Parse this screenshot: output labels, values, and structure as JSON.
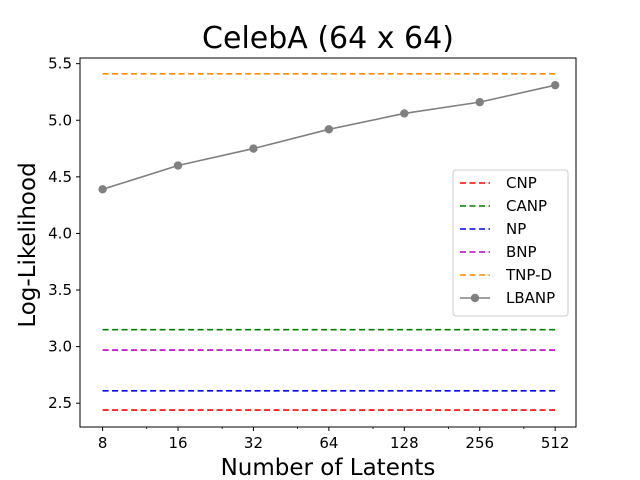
{
  "chart_data": {
    "type": "line",
    "title": "CelebA (64 x 64)",
    "xlabel": "Number of Latents",
    "ylabel": "Log-Likelihood",
    "xscale": "log2",
    "x": [
      8,
      16,
      32,
      64,
      128,
      256,
      512
    ],
    "x_tick_labels": [
      "8",
      "16",
      "32",
      "64",
      "128",
      "256",
      "512"
    ],
    "xlim": [
      6.5,
      620
    ],
    "ylim": [
      2.29,
      5.55
    ],
    "y_ticks": [
      2.5,
      3.0,
      3.5,
      4.0,
      4.5,
      5.0,
      5.5
    ],
    "y_tick_labels": [
      "2.5",
      "3.0",
      "3.5",
      "4.0",
      "4.5",
      "5.0",
      "5.5"
    ],
    "grid": false,
    "legend_position": "center-right",
    "series": [
      {
        "name": "CNP",
        "style": "dashed",
        "color": "#ff0000",
        "value": 2.44
      },
      {
        "name": "CANP",
        "style": "dashed",
        "color": "#008000",
        "value": 3.15
      },
      {
        "name": "NP",
        "style": "dashed",
        "color": "#0000ff",
        "value": 2.61
      },
      {
        "name": "BNP",
        "style": "dashed",
        "color": "#bf00bf",
        "value": 2.97
      },
      {
        "name": "TNP-D",
        "style": "dashed",
        "color": "#ff8c00",
        "value": 5.41
      },
      {
        "name": "LBANP",
        "style": "solid-marker",
        "color": "#808080",
        "values": [
          4.39,
          4.6,
          4.75,
          4.92,
          5.06,
          5.16,
          5.31
        ]
      }
    ]
  }
}
